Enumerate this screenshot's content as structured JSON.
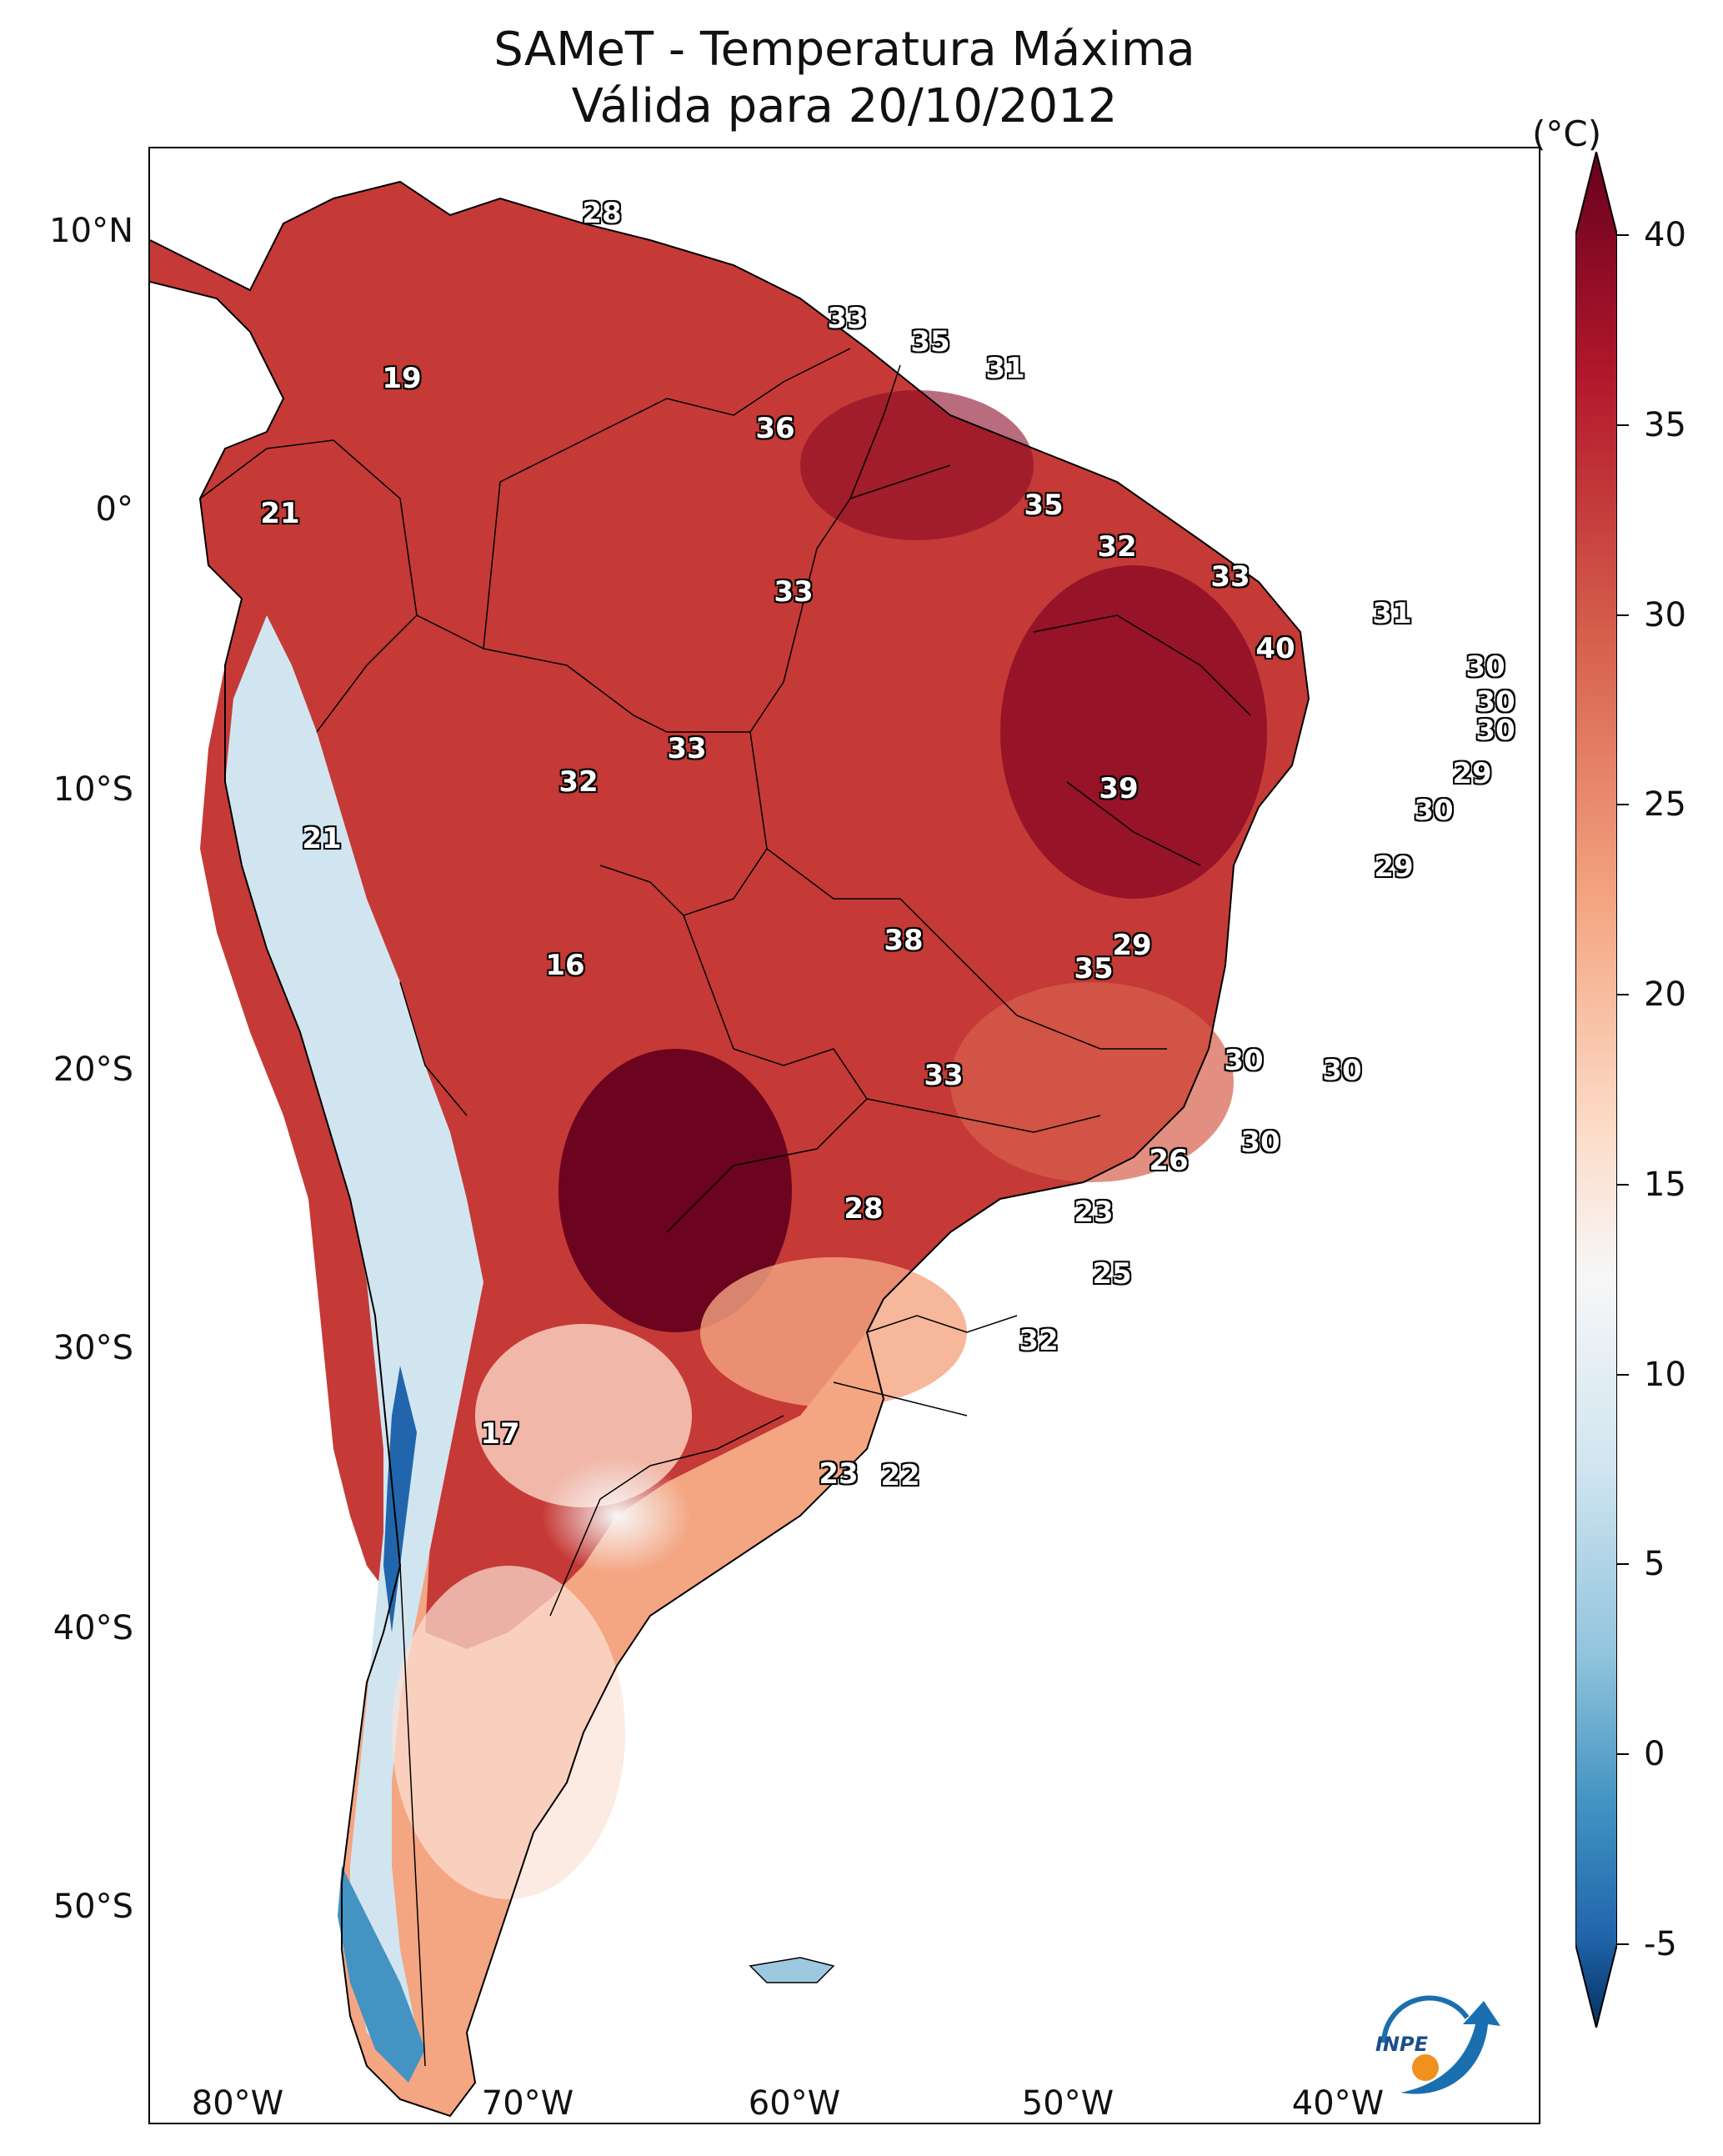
{
  "title": "SAMeT - Temperatura Máxima",
  "subtitle": "Válida para 20/10/2012",
  "colorbar": {
    "unit": "(°C)",
    "ticks": [
      "40",
      "35",
      "30",
      "25",
      "20",
      "15",
      "10",
      "5",
      "0",
      "-5"
    ],
    "range": [
      -5,
      40
    ],
    "colormap": "RdBu_r"
  },
  "axes": {
    "lat_ticks": [
      "10°N",
      "0°",
      "10°S",
      "20°S",
      "30°S",
      "40°S",
      "50°S"
    ],
    "lon_ticks": [
      "80°W",
      "70°W",
      "60°W",
      "50°W",
      "40°W"
    ]
  },
  "logo": {
    "text": "INPE",
    "icon": "inpe-logo-icon"
  },
  "city_values": [
    "28",
    "19",
    "33",
    "35",
    "31",
    "36",
    "21",
    "35",
    "32",
    "33",
    "33",
    "40",
    "31",
    "30",
    "30",
    "30",
    "33",
    "32",
    "39",
    "29",
    "30",
    "21",
    "29",
    "38",
    "16",
    "29",
    "35",
    "33",
    "30",
    "30",
    "30",
    "26",
    "28",
    "23",
    "25",
    "32",
    "17",
    "23",
    "22"
  ],
  "colors": {
    "hot": "#67001f",
    "warm": "#d6604d",
    "mild": "#f4a582",
    "neutral": "#f7f7f7",
    "cool": "#92c5de",
    "cold": "#2166ac"
  }
}
